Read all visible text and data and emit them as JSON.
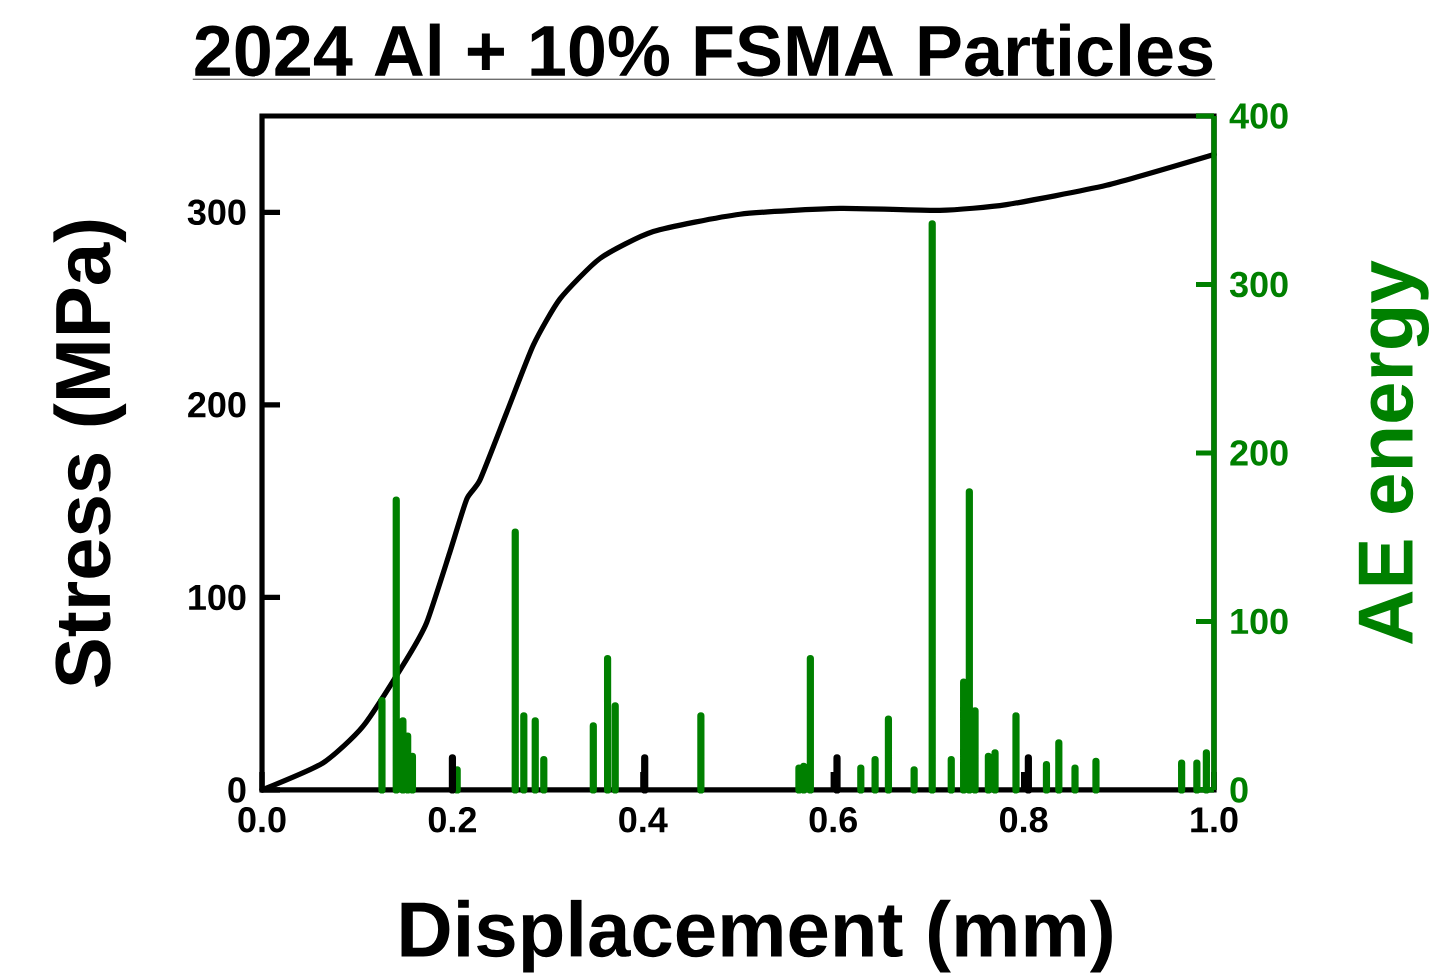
{
  "chart_data": {
    "type": "bar",
    "title": "2024 Al + 10% FSMA Particles",
    "xlabel": "Displacement (mm)",
    "ylabel": "Stress (MPa)",
    "y2label": "AE energy",
    "xlim": [
      0,
      1
    ],
    "xticks": [
      {
        "value": 0,
        "label": "0.0"
      },
      {
        "value": 0.2,
        "label": "0.2"
      },
      {
        "value": 0.4,
        "label": "0.4"
      },
      {
        "value": 0.6,
        "label": "0.6"
      },
      {
        "value": 0.8,
        "label": "0.8"
      },
      {
        "value": 1,
        "label": "1.0"
      }
    ],
    "ylim": [
      0,
      350
    ],
    "yticks": [
      0,
      100,
      200,
      300
    ],
    "y2lim": [
      0,
      400
    ],
    "y2ticks": [
      0,
      100,
      200,
      300,
      400
    ],
    "series": [
      {
        "axis": "y2",
        "color": "#008000",
        "x": [
          0.126,
          0.141,
          0.148,
          0.153,
          0.158,
          0.205,
          0.266,
          0.275,
          0.287,
          0.296,
          0.348,
          0.363,
          0.371,
          0.461,
          0.564,
          0.569,
          0.576,
          0.629,
          0.644,
          0.658,
          0.685,
          0.704,
          0.724,
          0.737,
          0.743,
          0.749,
          0.763,
          0.77,
          0.792,
          0.824,
          0.837,
          0.854,
          0.876,
          0.966,
          0.982,
          0.992
        ],
        "values": [
          53,
          172,
          41,
          32,
          20,
          12,
          153,
          44,
          41,
          18,
          38,
          78,
          50,
          44,
          13,
          14,
          78,
          13,
          18,
          42,
          12,
          336,
          18,
          64,
          177,
          47,
          20,
          22,
          44,
          15,
          28,
          13,
          17,
          16,
          16,
          22
        ]
      },
      {
        "axis": "y2",
        "color": "#000000",
        "x": [
          0.2,
          0.402,
          0.604,
          0.805
        ],
        "values": [
          19,
          19,
          19,
          19
        ]
      },
      {
        "type": "line",
        "axis": "y",
        "color": "#000000",
        "x": [
          0,
          0.064,
          0.106,
          0.152,
          0.173,
          0.197,
          0.215,
          0.229,
          0.257,
          0.285,
          0.313,
          0.355,
          0.411,
          0.502,
          0.607,
          0.712,
          0.782,
          0.887,
          1.0
        ],
        "values": [
          0,
          14,
          33,
          68,
          87,
          123,
          151,
          161,
          196,
          231,
          255,
          276,
          290,
          299,
          302,
          301,
          304,
          314,
          330
        ]
      }
    ]
  }
}
